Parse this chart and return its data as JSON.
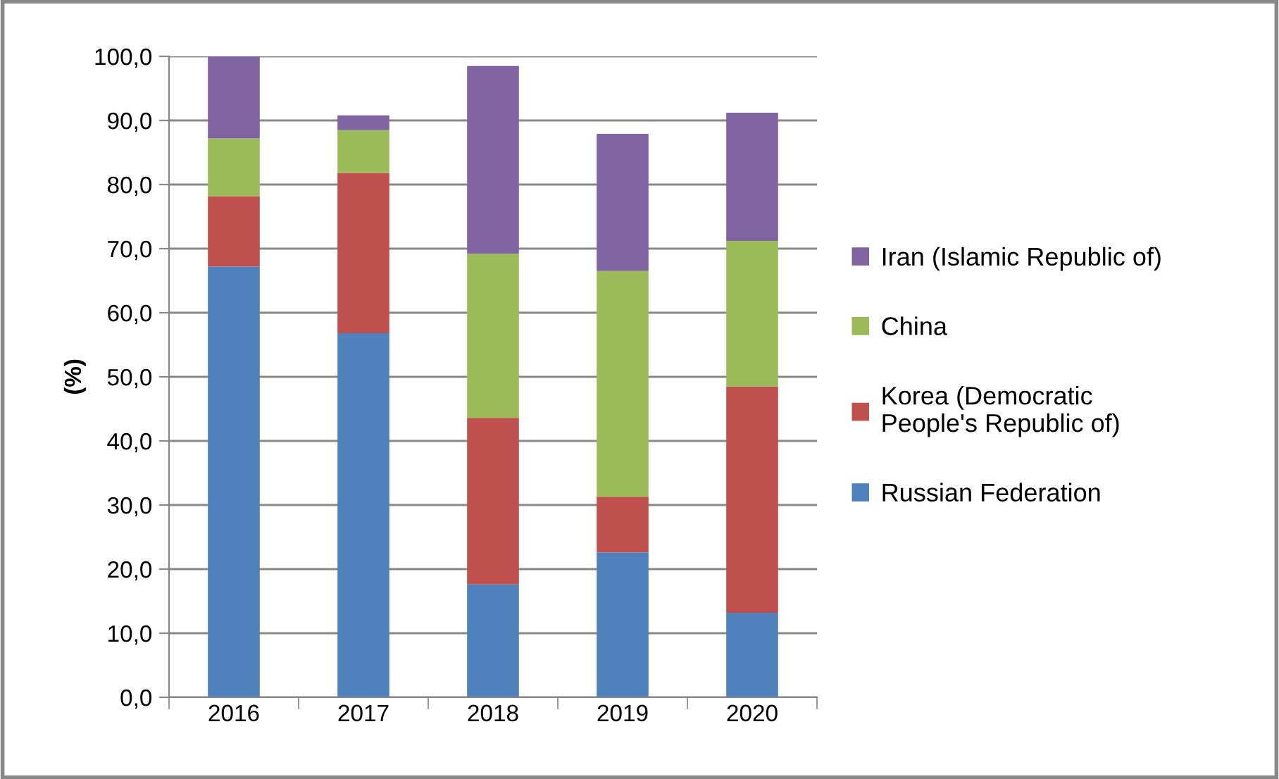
{
  "chart_data": {
    "type": "bar",
    "stacked": true,
    "ylabel": "(%)",
    "categories": [
      "2016",
      "2017",
      "2018",
      "2019",
      "2020"
    ],
    "series": [
      {
        "name": "Russian Federation",
        "color": "#4f81bd",
        "values": [
          67.2,
          56.8,
          17.6,
          22.6,
          13.2
        ]
      },
      {
        "name": "Korea (Democratic\nPeople's Republic of)",
        "color": "#c0504d",
        "values": [
          11.0,
          25.0,
          26.0,
          8.7,
          35.3
        ]
      },
      {
        "name": "China",
        "color": "#9bbb59",
        "values": [
          9.0,
          6.7,
          25.6,
          35.2,
          22.7
        ]
      },
      {
        "name": "Iran (Islamic Republic of)",
        "color": "#8064a2",
        "values": [
          12.8,
          2.3,
          29.3,
          21.4,
          20.0
        ]
      }
    ],
    "ylim": [
      0,
      100
    ],
    "yticks": [
      {
        "value": 0,
        "label": "0,0"
      },
      {
        "value": 10,
        "label": "10,0"
      },
      {
        "value": 20,
        "label": "20,0"
      },
      {
        "value": 30,
        "label": "30,0"
      },
      {
        "value": 40,
        "label": "40,0"
      },
      {
        "value": 50,
        "label": "50,0"
      },
      {
        "value": 60,
        "label": "60,0"
      },
      {
        "value": 70,
        "label": "70,0"
      },
      {
        "value": 80,
        "label": "80,0"
      },
      {
        "value": 90,
        "label": "90,0"
      },
      {
        "value": 100,
        "label": "100,0"
      }
    ],
    "grid": "y",
    "legend": "right"
  }
}
